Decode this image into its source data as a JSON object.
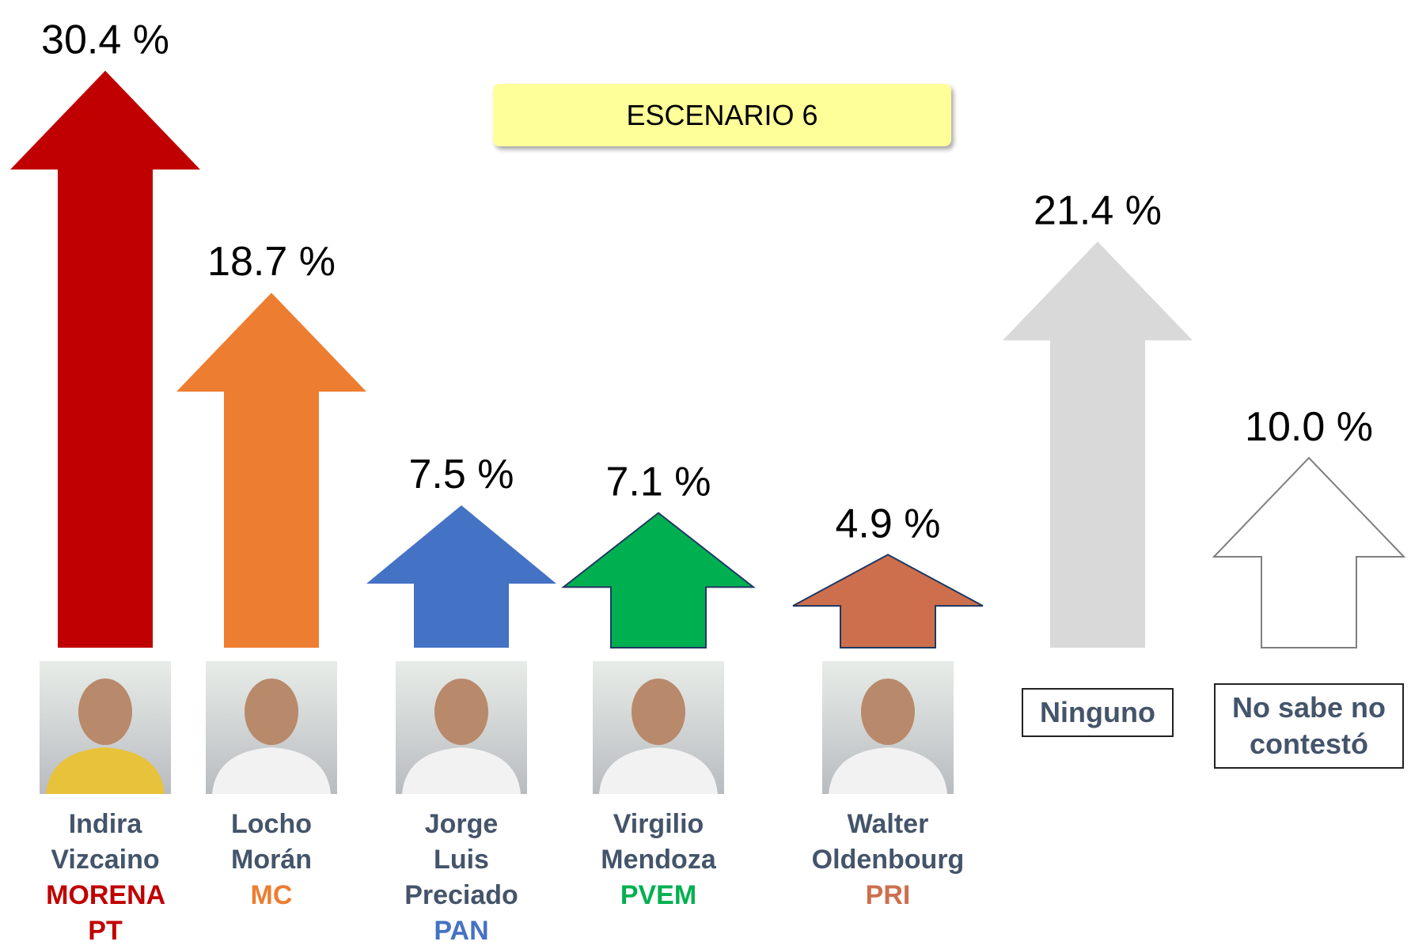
{
  "chart_data": {
    "type": "arrow",
    "annotation": "ESCENARIO 6",
    "categories": [
      "Indira Vizcaino",
      "Locho Morán",
      "Jorge Luis Preciado",
      "Virgilio Mendoza",
      "Walter Oldenbourg",
      "Ninguno",
      "No sabe no contestó"
    ],
    "parties": [
      "MORENA PT",
      "MC",
      "PAN",
      "PVEM",
      "PRI",
      null,
      null
    ],
    "values": [
      30.4,
      18.7,
      7.5,
      7.1,
      4.9,
      21.4,
      10.0
    ],
    "value_labels": [
      "30.4 %",
      "18.7 %",
      "7.5 %",
      "7.1 %",
      "4.9 %",
      "21.4 %",
      "10.0 %"
    ],
    "colors": [
      "#c00000",
      "#ed7d31",
      "#4472c4",
      "#00b050",
      "#cd6f4d",
      "#d9d9d9",
      "#ffffff"
    ]
  }
}
